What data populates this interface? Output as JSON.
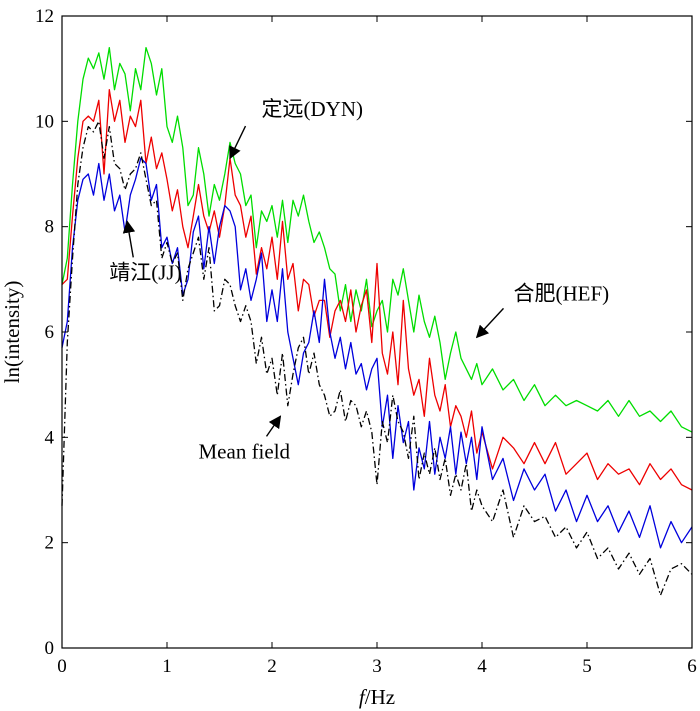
{
  "chart_data": {
    "type": "line",
    "title": "",
    "xlabel_italic": "f",
    "xlabel_rest": "/Hz",
    "ylabel": "ln(intensity)",
    "xlim": [
      0,
      6
    ],
    "ylim": [
      0,
      12
    ],
    "xticks": [
      0,
      1,
      2,
      3,
      4,
      5,
      6
    ],
    "yticks": [
      0,
      2,
      4,
      6,
      8,
      10,
      12
    ],
    "grid": false,
    "series": [
      {
        "name": "合肥(HEF)",
        "color": "#00dd00",
        "dash": "solid",
        "x": [
          0,
          0.05,
          0.1,
          0.15,
          0.2,
          0.25,
          0.3,
          0.35,
          0.4,
          0.45,
          0.5,
          0.55,
          0.6,
          0.65,
          0.7,
          0.75,
          0.8,
          0.85,
          0.9,
          0.95,
          1.0,
          1.05,
          1.1,
          1.15,
          1.2,
          1.25,
          1.3,
          1.35,
          1.4,
          1.45,
          1.5,
          1.55,
          1.6,
          1.65,
          1.7,
          1.75,
          1.8,
          1.85,
          1.9,
          1.95,
          2.0,
          2.05,
          2.1,
          2.15,
          2.2,
          2.25,
          2.3,
          2.35,
          2.4,
          2.45,
          2.5,
          2.55,
          2.6,
          2.65,
          2.7,
          2.75,
          2.8,
          2.85,
          2.9,
          2.95,
          3.0,
          3.05,
          3.1,
          3.15,
          3.2,
          3.25,
          3.3,
          3.35,
          3.4,
          3.45,
          3.5,
          3.55,
          3.6,
          3.65,
          3.7,
          3.75,
          3.8,
          3.85,
          3.9,
          3.95,
          4.0,
          4.1,
          4.2,
          4.3,
          4.4,
          4.5,
          4.6,
          4.7,
          4.8,
          4.9,
          5.0,
          5.1,
          5.2,
          5.3,
          5.4,
          5.5,
          5.6,
          5.7,
          5.8,
          5.9,
          6.0
        ],
        "values": [
          6.9,
          7.4,
          8.8,
          10.0,
          10.8,
          11.2,
          11.0,
          11.3,
          10.8,
          11.4,
          10.6,
          11.1,
          10.9,
          10.2,
          11.0,
          10.6,
          11.4,
          11.1,
          10.5,
          11.0,
          9.9,
          9.6,
          10.1,
          9.5,
          8.4,
          8.6,
          9.5,
          9.0,
          8.2,
          8.8,
          8.5,
          9.0,
          9.6,
          9.2,
          9.0,
          8.4,
          8.6,
          7.6,
          8.3,
          8.1,
          8.4,
          7.8,
          8.5,
          7.7,
          8.5,
          8.2,
          8.6,
          8.1,
          7.7,
          7.9,
          7.6,
          7.2,
          7.1,
          6.4,
          6.9,
          6.2,
          6.8,
          6.4,
          7.0,
          6.1,
          6.4,
          6.6,
          6.0,
          7.0,
          6.7,
          7.2,
          6.6,
          6.0,
          6.7,
          6.2,
          5.9,
          6.3,
          5.8,
          5.1,
          5.6,
          6.0,
          5.5,
          5.3,
          5.1,
          5.4,
          5.0,
          5.3,
          4.9,
          5.1,
          4.7,
          5.0,
          4.6,
          4.8,
          4.6,
          4.7,
          4.6,
          4.5,
          4.7,
          4.4,
          4.7,
          4.4,
          4.5,
          4.3,
          4.5,
          4.2,
          4.1
        ]
      },
      {
        "name": "定远(DYN)",
        "color": "#ee0000",
        "dash": "solid",
        "x": [
          0,
          0.05,
          0.1,
          0.15,
          0.2,
          0.25,
          0.3,
          0.35,
          0.4,
          0.45,
          0.5,
          0.55,
          0.6,
          0.65,
          0.7,
          0.75,
          0.8,
          0.85,
          0.9,
          0.95,
          1.0,
          1.05,
          1.1,
          1.15,
          1.2,
          1.25,
          1.3,
          1.35,
          1.4,
          1.45,
          1.5,
          1.55,
          1.6,
          1.65,
          1.7,
          1.75,
          1.8,
          1.85,
          1.9,
          1.95,
          2.0,
          2.05,
          2.1,
          2.15,
          2.2,
          2.25,
          2.3,
          2.35,
          2.4,
          2.45,
          2.5,
          2.55,
          2.6,
          2.65,
          2.7,
          2.75,
          2.8,
          2.85,
          2.9,
          2.95,
          3.0,
          3.05,
          3.1,
          3.15,
          3.2,
          3.25,
          3.3,
          3.35,
          3.4,
          3.45,
          3.5,
          3.55,
          3.6,
          3.65,
          3.7,
          3.75,
          3.8,
          3.85,
          3.9,
          3.95,
          4.0,
          4.1,
          4.2,
          4.3,
          4.4,
          4.5,
          4.6,
          4.7,
          4.8,
          4.9,
          5.0,
          5.1,
          5.2,
          5.3,
          5.4,
          5.5,
          5.6,
          5.7,
          5.8,
          5.9,
          6.0
        ],
        "values": [
          6.9,
          7.0,
          8.2,
          9.3,
          10.0,
          10.1,
          10.0,
          10.4,
          9.0,
          10.6,
          10.0,
          10.4,
          9.6,
          10.1,
          9.9,
          10.4,
          9.2,
          9.7,
          9.1,
          9.4,
          8.9,
          8.3,
          8.7,
          8.0,
          7.6,
          8.2,
          8.8,
          8.2,
          7.9,
          8.3,
          7.8,
          8.4,
          9.3,
          8.6,
          8.4,
          7.8,
          8.2,
          7.1,
          7.6,
          7.2,
          7.8,
          7.0,
          8.1,
          7.0,
          7.3,
          6.4,
          7.0,
          6.9,
          6.3,
          6.6,
          6.6,
          5.9,
          6.4,
          6.6,
          6.2,
          6.8,
          6.0,
          6.5,
          6.8,
          5.8,
          7.3,
          5.6,
          5.2,
          6.0,
          5.0,
          6.6,
          5.3,
          4.8,
          5.1,
          4.4,
          5.5,
          4.8,
          4.5,
          5.0,
          4.2,
          4.6,
          4.4,
          4.0,
          4.5,
          3.7,
          4.1,
          3.4,
          4.0,
          3.8,
          3.5,
          3.9,
          3.5,
          3.9,
          3.3,
          3.5,
          3.7,
          3.2,
          3.5,
          3.3,
          3.4,
          3.1,
          3.5,
          3.2,
          3.4,
          3.1,
          3.0
        ]
      },
      {
        "name": "靖江(JJ)",
        "color": "#0000dd",
        "dash": "solid",
        "x": [
          0,
          0.05,
          0.1,
          0.15,
          0.2,
          0.25,
          0.3,
          0.35,
          0.4,
          0.45,
          0.5,
          0.55,
          0.6,
          0.65,
          0.7,
          0.75,
          0.8,
          0.85,
          0.9,
          0.95,
          1.0,
          1.05,
          1.1,
          1.15,
          1.2,
          1.25,
          1.3,
          1.35,
          1.4,
          1.45,
          1.5,
          1.55,
          1.6,
          1.65,
          1.7,
          1.75,
          1.8,
          1.85,
          1.9,
          1.95,
          2.0,
          2.05,
          2.1,
          2.15,
          2.2,
          2.25,
          2.3,
          2.35,
          2.4,
          2.45,
          2.5,
          2.55,
          2.6,
          2.65,
          2.7,
          2.75,
          2.8,
          2.85,
          2.9,
          2.95,
          3.0,
          3.05,
          3.1,
          3.15,
          3.2,
          3.25,
          3.3,
          3.35,
          3.4,
          3.45,
          3.5,
          3.55,
          3.6,
          3.65,
          3.7,
          3.75,
          3.8,
          3.85,
          3.9,
          3.95,
          4.0,
          4.1,
          4.2,
          4.3,
          4.4,
          4.5,
          4.6,
          4.7,
          4.8,
          4.9,
          5.0,
          5.1,
          5.2,
          5.3,
          5.4,
          5.5,
          5.6,
          5.7,
          5.8,
          5.9,
          6.0
        ],
        "values": [
          5.7,
          6.2,
          7.6,
          8.5,
          8.9,
          9.0,
          8.6,
          9.2,
          8.5,
          9.0,
          8.3,
          8.6,
          7.9,
          8.6,
          8.9,
          9.3,
          9.2,
          8.5,
          8.8,
          7.6,
          7.8,
          7.3,
          7.6,
          6.7,
          7.0,
          7.9,
          8.2,
          7.2,
          8.0,
          7.3,
          8.0,
          8.4,
          8.3,
          8.0,
          6.8,
          7.2,
          6.6,
          7.0,
          7.5,
          6.2,
          6.8,
          6.2,
          7.2,
          6.0,
          5.5,
          5.0,
          5.6,
          5.8,
          6.4,
          5.8,
          7.0,
          6.0,
          5.5,
          5.9,
          5.3,
          5.8,
          5.2,
          5.4,
          4.9,
          5.3,
          5.5,
          4.2,
          4.8,
          3.6,
          4.6,
          3.9,
          4.3,
          3.0,
          3.8,
          3.4,
          4.3,
          3.3,
          4.0,
          3.6,
          4.2,
          3.3,
          4.1,
          3.5,
          4.0,
          3.2,
          4.2,
          3.2,
          3.6,
          2.8,
          3.4,
          3.0,
          3.3,
          2.6,
          3.0,
          2.4,
          2.9,
          2.4,
          2.7,
          2.2,
          2.6,
          2.1,
          2.7,
          1.9,
          2.4,
          2.0,
          2.3
        ]
      },
      {
        "name": "Mean field",
        "color": "#000000",
        "dash": "dashdot",
        "x": [
          0,
          0.05,
          0.1,
          0.15,
          0.2,
          0.25,
          0.3,
          0.35,
          0.4,
          0.45,
          0.5,
          0.55,
          0.6,
          0.65,
          0.7,
          0.75,
          0.8,
          0.85,
          0.9,
          0.95,
          1.0,
          1.05,
          1.1,
          1.15,
          1.2,
          1.25,
          1.3,
          1.35,
          1.4,
          1.45,
          1.5,
          1.55,
          1.6,
          1.65,
          1.7,
          1.75,
          1.8,
          1.85,
          1.9,
          1.95,
          2.0,
          2.05,
          2.1,
          2.15,
          2.2,
          2.25,
          2.3,
          2.35,
          2.4,
          2.45,
          2.5,
          2.55,
          2.6,
          2.65,
          2.7,
          2.75,
          2.8,
          2.85,
          2.9,
          2.95,
          3.0,
          3.05,
          3.1,
          3.15,
          3.2,
          3.25,
          3.3,
          3.35,
          3.4,
          3.45,
          3.5,
          3.55,
          3.6,
          3.65,
          3.7,
          3.75,
          3.8,
          3.85,
          3.9,
          3.95,
          4.0,
          4.1,
          4.2,
          4.3,
          4.4,
          4.5,
          4.6,
          4.7,
          4.8,
          4.9,
          5.0,
          5.1,
          5.2,
          5.3,
          5.4,
          5.5,
          5.6,
          5.7,
          5.8,
          5.9,
          6.0
        ],
        "values": [
          2.7,
          5.8,
          7.4,
          8.8,
          9.5,
          9.9,
          9.8,
          10.0,
          9.3,
          9.9,
          9.2,
          9.1,
          8.7,
          9.0,
          9.1,
          9.4,
          8.9,
          8.4,
          8.5,
          7.4,
          7.7,
          7.3,
          7.5,
          6.6,
          7.2,
          7.5,
          7.8,
          7.0,
          7.6,
          6.4,
          6.5,
          7.0,
          6.9,
          6.5,
          6.2,
          6.5,
          6.2,
          5.4,
          5.9,
          5.2,
          5.5,
          4.8,
          5.6,
          4.6,
          5.2,
          5.7,
          5.9,
          5.2,
          5.6,
          5.0,
          4.8,
          4.4,
          4.5,
          4.9,
          4.3,
          4.7,
          4.6,
          4.2,
          4.5,
          4.1,
          3.1,
          4.3,
          3.9,
          4.8,
          4.3,
          4.1,
          3.6,
          4.4,
          3.2,
          3.7,
          3.3,
          3.8,
          3.2,
          3.6,
          2.9,
          3.3,
          3.0,
          3.5,
          2.6,
          3.0,
          2.7,
          2.4,
          3.0,
          2.1,
          2.7,
          2.4,
          2.5,
          2.1,
          2.3,
          1.9,
          2.2,
          1.7,
          1.9,
          1.5,
          1.8,
          1.4,
          1.7,
          1.0,
          1.5,
          1.6,
          1.4
        ]
      }
    ],
    "annotations": [
      {
        "text": "定远(DYN)",
        "target": [
          1.6,
          9.3
        ],
        "text_pos": [
          1.9,
          10.1
        ]
      },
      {
        "text": "靖江(JJ)",
        "target": [
          0.62,
          8.1
        ],
        "text_pos": [
          0.45,
          7.0
        ]
      },
      {
        "text": "合肥(HEF)",
        "target": [
          3.95,
          5.9
        ],
        "text_pos": [
          4.3,
          6.6
        ]
      },
      {
        "text": "Mean field",
        "target": [
          2.08,
          4.4
        ],
        "text_pos": [
          1.3,
          3.6
        ]
      }
    ]
  }
}
